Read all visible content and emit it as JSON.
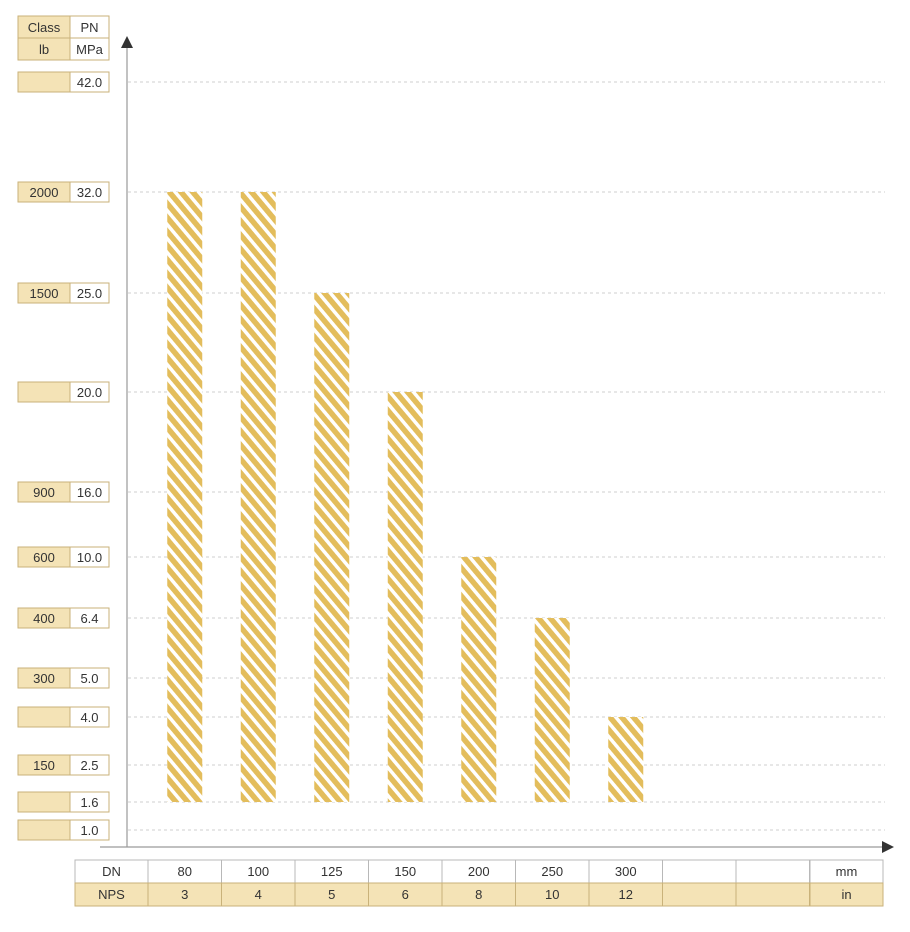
{
  "header": {
    "class_label": "Class",
    "pn_label": "PN",
    "lb_label": "lb",
    "mpa_label": "MPa"
  },
  "chart_data": {
    "type": "bar",
    "y_levels": [
      {
        "pn": "42.0",
        "value": 42.0,
        "class": ""
      },
      {
        "pn": "32.0",
        "value": 32.0,
        "class": "2000"
      },
      {
        "pn": "25.0",
        "value": 25.0,
        "class": "1500"
      },
      {
        "pn": "20.0",
        "value": 20.0,
        "class": ""
      },
      {
        "pn": "16.0",
        "value": 16.0,
        "class": "900"
      },
      {
        "pn": "10.0",
        "value": 10.0,
        "class": "600"
      },
      {
        "pn": "6.4",
        "value": 6.4,
        "class": "400"
      },
      {
        "pn": "5.0",
        "value": 5.0,
        "class": "300"
      },
      {
        "pn": "4.0",
        "value": 4.0,
        "class": ""
      },
      {
        "pn": "2.5",
        "value": 2.5,
        "class": "150"
      },
      {
        "pn": "1.6",
        "value": 1.6,
        "class": ""
      },
      {
        "pn": "1.0",
        "value": 1.0,
        "class": ""
      }
    ],
    "bars": [
      {
        "dn": "80",
        "nps": "3",
        "top": 32.0,
        "bottom": 1.6
      },
      {
        "dn": "100",
        "nps": "4",
        "top": 32.0,
        "bottom": 1.6
      },
      {
        "dn": "125",
        "nps": "5",
        "top": 25.0,
        "bottom": 1.6
      },
      {
        "dn": "150",
        "nps": "6",
        "top": 20.0,
        "bottom": 1.6
      },
      {
        "dn": "200",
        "nps": "8",
        "top": 10.0,
        "bottom": 1.6
      },
      {
        "dn": "250",
        "nps": "10",
        "top": 6.4,
        "bottom": 1.6
      },
      {
        "dn": "300",
        "nps": "12",
        "top": 4.0,
        "bottom": 1.6
      }
    ],
    "empty_columns": 2,
    "grid": true,
    "bar_color": "#e3bd5c",
    "stripe_color": "#ffffff"
  },
  "table": {
    "dn_label": "DN",
    "nps_label": "NPS",
    "mm_label": "mm",
    "in_label": "in"
  }
}
